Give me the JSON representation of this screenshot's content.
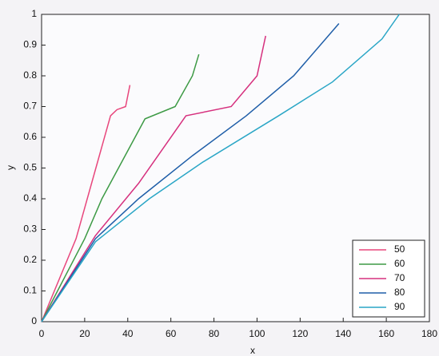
{
  "chart_data": {
    "type": "line",
    "xlabel": "x",
    "ylabel": "y",
    "xlim": [
      0,
      180
    ],
    "xticks": [
      0,
      20,
      40,
      60,
      80,
      100,
      120,
      140,
      160,
      180
    ],
    "ylim": [
      0,
      1
    ],
    "yticks": [
      0,
      0.1,
      0.2,
      0.3,
      0.4,
      0.5,
      0.6,
      0.7,
      0.8,
      0.9,
      1
    ],
    "legend": "lower right",
    "series": [
      {
        "name": "50",
        "color": "#e8467c",
        "x": [
          0,
          16,
          32,
          35,
          39,
          41
        ],
        "values": [
          0,
          0.27,
          0.67,
          0.69,
          0.7,
          0.77
        ]
      },
      {
        "name": "60",
        "color": "#3d9a45",
        "x": [
          0,
          20,
          28,
          48,
          62,
          70,
          73
        ],
        "values": [
          0,
          0.27,
          0.4,
          0.66,
          0.7,
          0.8,
          0.87
        ]
      },
      {
        "name": "70",
        "color": "#d6307e",
        "x": [
          0,
          25,
          45,
          67,
          88,
          100,
          104
        ],
        "values": [
          0,
          0.28,
          0.45,
          0.67,
          0.7,
          0.8,
          0.93
        ]
      },
      {
        "name": "80",
        "color": "#1f5ea8",
        "x": [
          0,
          25,
          45,
          70,
          95,
          117,
          138
        ],
        "values": [
          0,
          0.27,
          0.4,
          0.54,
          0.67,
          0.8,
          0.97
        ]
      },
      {
        "name": "90",
        "color": "#2aa6c6",
        "x": [
          0,
          25,
          50,
          75,
          110,
          135,
          158,
          166
        ],
        "values": [
          0,
          0.26,
          0.4,
          0.52,
          0.67,
          0.78,
          0.92,
          1.0
        ]
      }
    ]
  }
}
